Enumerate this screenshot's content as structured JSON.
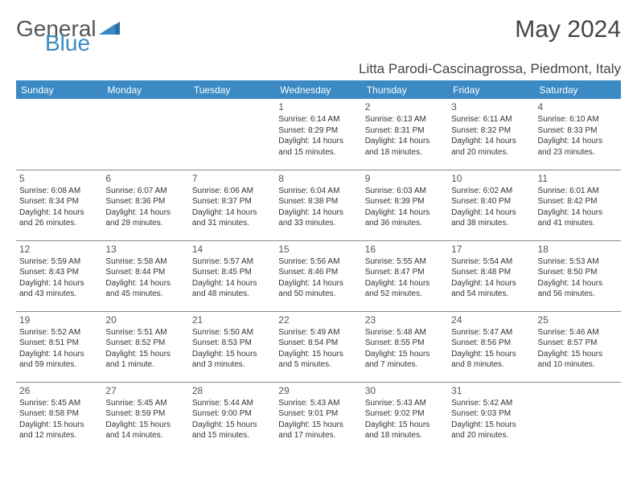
{
  "logo": {
    "part1": "General",
    "part2": "Blue"
  },
  "title": "May 2024",
  "location": "Litta Parodi-Cascinagrossa, Piedmont, Italy",
  "colors": {
    "header_bg": "#3b8ac4",
    "header_fg": "#ffffff",
    "border": "#888888",
    "logo_gray": "#555555",
    "logo_blue": "#3b8ac4"
  },
  "weekdays": [
    "Sunday",
    "Monday",
    "Tuesday",
    "Wednesday",
    "Thursday",
    "Friday",
    "Saturday"
  ],
  "weeks": [
    [
      null,
      null,
      null,
      {
        "n": "1",
        "sr": "Sunrise: 6:14 AM",
        "ss": "Sunset: 8:29 PM",
        "d1": "Daylight: 14 hours",
        "d2": "and 15 minutes."
      },
      {
        "n": "2",
        "sr": "Sunrise: 6:13 AM",
        "ss": "Sunset: 8:31 PM",
        "d1": "Daylight: 14 hours",
        "d2": "and 18 minutes."
      },
      {
        "n": "3",
        "sr": "Sunrise: 6:11 AM",
        "ss": "Sunset: 8:32 PM",
        "d1": "Daylight: 14 hours",
        "d2": "and 20 minutes."
      },
      {
        "n": "4",
        "sr": "Sunrise: 6:10 AM",
        "ss": "Sunset: 8:33 PM",
        "d1": "Daylight: 14 hours",
        "d2": "and 23 minutes."
      }
    ],
    [
      {
        "n": "5",
        "sr": "Sunrise: 6:08 AM",
        "ss": "Sunset: 8:34 PM",
        "d1": "Daylight: 14 hours",
        "d2": "and 26 minutes."
      },
      {
        "n": "6",
        "sr": "Sunrise: 6:07 AM",
        "ss": "Sunset: 8:36 PM",
        "d1": "Daylight: 14 hours",
        "d2": "and 28 minutes."
      },
      {
        "n": "7",
        "sr": "Sunrise: 6:06 AM",
        "ss": "Sunset: 8:37 PM",
        "d1": "Daylight: 14 hours",
        "d2": "and 31 minutes."
      },
      {
        "n": "8",
        "sr": "Sunrise: 6:04 AM",
        "ss": "Sunset: 8:38 PM",
        "d1": "Daylight: 14 hours",
        "d2": "and 33 minutes."
      },
      {
        "n": "9",
        "sr": "Sunrise: 6:03 AM",
        "ss": "Sunset: 8:39 PM",
        "d1": "Daylight: 14 hours",
        "d2": "and 36 minutes."
      },
      {
        "n": "10",
        "sr": "Sunrise: 6:02 AM",
        "ss": "Sunset: 8:40 PM",
        "d1": "Daylight: 14 hours",
        "d2": "and 38 minutes."
      },
      {
        "n": "11",
        "sr": "Sunrise: 6:01 AM",
        "ss": "Sunset: 8:42 PM",
        "d1": "Daylight: 14 hours",
        "d2": "and 41 minutes."
      }
    ],
    [
      {
        "n": "12",
        "sr": "Sunrise: 5:59 AM",
        "ss": "Sunset: 8:43 PM",
        "d1": "Daylight: 14 hours",
        "d2": "and 43 minutes."
      },
      {
        "n": "13",
        "sr": "Sunrise: 5:58 AM",
        "ss": "Sunset: 8:44 PM",
        "d1": "Daylight: 14 hours",
        "d2": "and 45 minutes."
      },
      {
        "n": "14",
        "sr": "Sunrise: 5:57 AM",
        "ss": "Sunset: 8:45 PM",
        "d1": "Daylight: 14 hours",
        "d2": "and 48 minutes."
      },
      {
        "n": "15",
        "sr": "Sunrise: 5:56 AM",
        "ss": "Sunset: 8:46 PM",
        "d1": "Daylight: 14 hours",
        "d2": "and 50 minutes."
      },
      {
        "n": "16",
        "sr": "Sunrise: 5:55 AM",
        "ss": "Sunset: 8:47 PM",
        "d1": "Daylight: 14 hours",
        "d2": "and 52 minutes."
      },
      {
        "n": "17",
        "sr": "Sunrise: 5:54 AM",
        "ss": "Sunset: 8:48 PM",
        "d1": "Daylight: 14 hours",
        "d2": "and 54 minutes."
      },
      {
        "n": "18",
        "sr": "Sunrise: 5:53 AM",
        "ss": "Sunset: 8:50 PM",
        "d1": "Daylight: 14 hours",
        "d2": "and 56 minutes."
      }
    ],
    [
      {
        "n": "19",
        "sr": "Sunrise: 5:52 AM",
        "ss": "Sunset: 8:51 PM",
        "d1": "Daylight: 14 hours",
        "d2": "and 59 minutes."
      },
      {
        "n": "20",
        "sr": "Sunrise: 5:51 AM",
        "ss": "Sunset: 8:52 PM",
        "d1": "Daylight: 15 hours",
        "d2": "and 1 minute."
      },
      {
        "n": "21",
        "sr": "Sunrise: 5:50 AM",
        "ss": "Sunset: 8:53 PM",
        "d1": "Daylight: 15 hours",
        "d2": "and 3 minutes."
      },
      {
        "n": "22",
        "sr": "Sunrise: 5:49 AM",
        "ss": "Sunset: 8:54 PM",
        "d1": "Daylight: 15 hours",
        "d2": "and 5 minutes."
      },
      {
        "n": "23",
        "sr": "Sunrise: 5:48 AM",
        "ss": "Sunset: 8:55 PM",
        "d1": "Daylight: 15 hours",
        "d2": "and 7 minutes."
      },
      {
        "n": "24",
        "sr": "Sunrise: 5:47 AM",
        "ss": "Sunset: 8:56 PM",
        "d1": "Daylight: 15 hours",
        "d2": "and 8 minutes."
      },
      {
        "n": "25",
        "sr": "Sunrise: 5:46 AM",
        "ss": "Sunset: 8:57 PM",
        "d1": "Daylight: 15 hours",
        "d2": "and 10 minutes."
      }
    ],
    [
      {
        "n": "26",
        "sr": "Sunrise: 5:45 AM",
        "ss": "Sunset: 8:58 PM",
        "d1": "Daylight: 15 hours",
        "d2": "and 12 minutes."
      },
      {
        "n": "27",
        "sr": "Sunrise: 5:45 AM",
        "ss": "Sunset: 8:59 PM",
        "d1": "Daylight: 15 hours",
        "d2": "and 14 minutes."
      },
      {
        "n": "28",
        "sr": "Sunrise: 5:44 AM",
        "ss": "Sunset: 9:00 PM",
        "d1": "Daylight: 15 hours",
        "d2": "and 15 minutes."
      },
      {
        "n": "29",
        "sr": "Sunrise: 5:43 AM",
        "ss": "Sunset: 9:01 PM",
        "d1": "Daylight: 15 hours",
        "d2": "and 17 minutes."
      },
      {
        "n": "30",
        "sr": "Sunrise: 5:43 AM",
        "ss": "Sunset: 9:02 PM",
        "d1": "Daylight: 15 hours",
        "d2": "and 18 minutes."
      },
      {
        "n": "31",
        "sr": "Sunrise: 5:42 AM",
        "ss": "Sunset: 9:03 PM",
        "d1": "Daylight: 15 hours",
        "d2": "and 20 minutes."
      },
      null
    ]
  ]
}
